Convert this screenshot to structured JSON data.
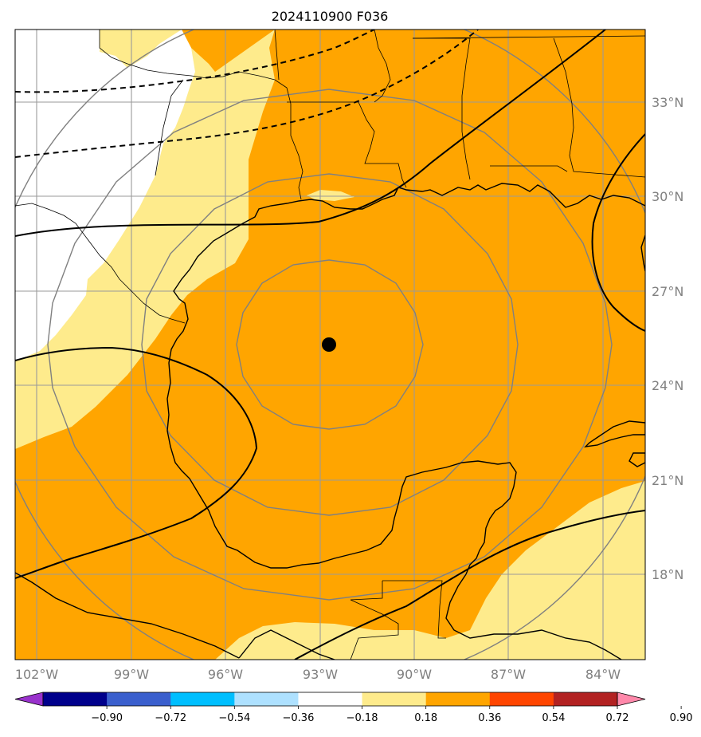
{
  "map": {
    "title": "2024110900 F036",
    "lat_labels": [
      "33°N",
      "30°N",
      "27°N",
      "24°N",
      "21°N",
      "18°N"
    ],
    "lon_labels": [
      "102°W",
      "99°W",
      "96°W",
      "93°W",
      "90°W",
      "87°W",
      "84°W"
    ],
    "center_marker": "storm-center",
    "colors": {
      "field_light": "#feeb8c",
      "field_orange": "#ffa500",
      "land_blank": "#ffffff"
    }
  },
  "colorbar": {
    "labels": [
      "−0.90",
      "−0.72",
      "−0.54",
      "−0.36",
      "−0.18",
      "0.18",
      "0.36",
      "0.54",
      "0.72",
      "0.90"
    ],
    "colors": [
      "#9932cc",
      "#00008b",
      "#3a5fcd",
      "#00bfff",
      "#aee1ff",
      "#ffffff",
      "#feeb8c",
      "#ffa500",
      "#ff4500",
      "#b22222",
      "#ff88aa"
    ]
  }
}
